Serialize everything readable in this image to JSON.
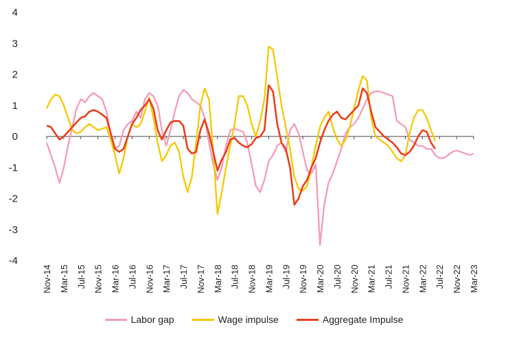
{
  "chart_data": {
    "type": "line",
    "title": "",
    "xlabel": "",
    "ylabel": "",
    "ylim": [
      -4,
      4
    ],
    "yticks": [
      "4",
      "3",
      "2",
      "1",
      "0",
      "-1",
      "-2",
      "-3",
      "-4"
    ],
    "xticks": [
      "Nov-14",
      "Mar-15",
      "Jul-15",
      "Nov-15",
      "Mar-16",
      "Jul-16",
      "Nov-16",
      "Mar-17",
      "Jul-17",
      "Nov-17",
      "Mar-18",
      "Jul-18",
      "Nov-18",
      "Mar-19",
      "Jul-19",
      "Nov-19",
      "Mar-20",
      "Jul-20",
      "Nov-20",
      "Mar-21",
      "Jul-21",
      "Nov-21",
      "Mar-22",
      "Jul-22",
      "Nov-22",
      "Mar-23"
    ],
    "x_start": "Nov-14",
    "x_step_months": 1,
    "legend_position": "bottom",
    "series": [
      {
        "name": "Labor gap",
        "color": "#f59ab8",
        "values": [
          -0.2,
          -0.6,
          -1.0,
          -1.5,
          -1.0,
          -0.3,
          0.3,
          0.9,
          1.2,
          1.1,
          1.3,
          1.4,
          1.3,
          1.2,
          0.8,
          0.1,
          -0.4,
          -0.3,
          0.2,
          0.4,
          0.5,
          0.8,
          0.6,
          1.2,
          1.4,
          1.3,
          1.0,
          0.2,
          -0.3,
          0.2,
          0.8,
          1.3,
          1.5,
          1.4,
          1.2,
          1.1,
          1.0,
          0.6,
          -0.2,
          -0.9,
          -1.4,
          -1.0,
          -0.3,
          0.2,
          0.25,
          0.2,
          0.15,
          -0.2,
          -0.9,
          -1.6,
          -1.8,
          -1.4,
          -0.8,
          -0.6,
          -0.3,
          -0.2,
          -0.5,
          0.2,
          0.4,
          0.1,
          -0.5,
          -1.1,
          -1.2,
          -0.9,
          -3.5,
          -2.2,
          -1.5,
          -1.2,
          -0.8,
          -0.4,
          0.1,
          0.3,
          0.4,
          0.6,
          0.9,
          1.2,
          1.4,
          1.45,
          1.45,
          1.4,
          1.35,
          1.3,
          0.5,
          0.4,
          0.3,
          -0.1,
          -0.2,
          -0.3,
          -0.3,
          -0.4,
          -0.4,
          -0.6,
          -0.7,
          -0.7,
          -0.6,
          -0.5,
          -0.45,
          -0.5,
          -0.55,
          -0.6,
          -0.55
        ]
      },
      {
        "name": "Wage impulse",
        "color": "#f5c800",
        "values": [
          0.9,
          1.2,
          1.35,
          1.3,
          1.0,
          0.6,
          0.2,
          0.1,
          0.15,
          0.3,
          0.4,
          0.3,
          0.2,
          0.25,
          0.3,
          -0.1,
          -0.6,
          -1.2,
          -0.7,
          0.0,
          0.4,
          0.3,
          0.4,
          0.8,
          1.25,
          0.6,
          -0.2,
          -0.8,
          -0.6,
          -0.3,
          -0.2,
          -0.5,
          -1.3,
          -1.8,
          -1.3,
          -0.2,
          1.0,
          1.55,
          1.2,
          -0.5,
          -2.5,
          -1.8,
          -1.0,
          -0.3,
          0.4,
          1.3,
          1.3,
          1.0,
          0.4,
          0.0,
          0.5,
          1.2,
          2.9,
          2.8,
          1.9,
          1.0,
          0.3,
          -0.4,
          -1.3,
          -1.7,
          -1.75,
          -1.6,
          -1.0,
          -0.3,
          0.3,
          0.6,
          0.8,
          0.3,
          -0.1,
          -0.3,
          -0.1,
          0.3,
          0.9,
          1.5,
          1.95,
          1.8,
          0.6,
          0.0,
          -0.1,
          -0.2,
          -0.3,
          -0.5,
          -0.7,
          -0.8,
          -0.6,
          0.1,
          0.6,
          0.85,
          0.85,
          0.6,
          0.2,
          -0.15
        ]
      },
      {
        "name": "Aggregate Impulse",
        "color": "#e8401c",
        "values": [
          0.35,
          0.3,
          0.1,
          -0.1,
          0.0,
          0.15,
          0.3,
          0.45,
          0.6,
          0.65,
          0.8,
          0.85,
          0.8,
          0.7,
          0.6,
          0.1,
          -0.4,
          -0.5,
          -0.4,
          0.0,
          0.4,
          0.6,
          0.85,
          1.0,
          1.2,
          0.9,
          0.2,
          -0.1,
          0.2,
          0.45,
          0.5,
          0.5,
          0.35,
          -0.4,
          -0.55,
          -0.5,
          0.2,
          0.55,
          0.1,
          -0.5,
          -1.1,
          -0.75,
          -0.5,
          -0.1,
          -0.05,
          -0.2,
          -0.3,
          -0.35,
          -0.25,
          -0.05,
          0.0,
          0.2,
          1.65,
          1.45,
          0.4,
          -0.2,
          -0.4,
          -1.0,
          -2.2,
          -2.0,
          -1.6,
          -1.4,
          -1.0,
          -0.7,
          -0.2,
          0.2,
          0.5,
          0.7,
          0.8,
          0.6,
          0.55,
          0.7,
          0.85,
          1.0,
          1.55,
          1.4,
          0.8,
          0.3,
          0.15,
          0.0,
          -0.1,
          -0.2,
          -0.35,
          -0.55,
          -0.6,
          -0.5,
          -0.3,
          0.0,
          0.2,
          0.15,
          -0.2,
          -0.4
        ]
      }
    ]
  }
}
